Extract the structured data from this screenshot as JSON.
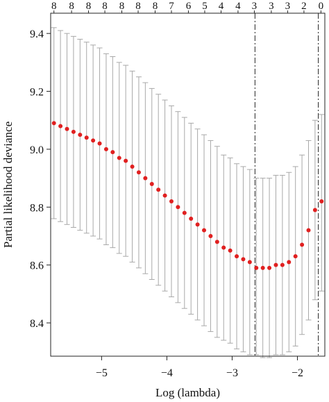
{
  "chart_data": {
    "type": "scatter",
    "title": "",
    "xlabel": "Log (lambda)",
    "ylabel": "Partial likelihood deviance",
    "xlim": [
      -5.78,
      -1.58
    ],
    "ylim": [
      8.285,
      9.47
    ],
    "x_ticks": [
      -5,
      -4,
      -3,
      -2
    ],
    "x_tick_labels": [
      "−5",
      "−4",
      "−3",
      "−2"
    ],
    "y_ticks": [
      8.4,
      8.6,
      8.8,
      9.0,
      9.2,
      9.4
    ],
    "y_tick_labels": [
      "8.4",
      "8.6",
      "8.8",
      "9.0",
      "9.2",
      "9.4"
    ],
    "top_axis": {
      "x": [
        -5.73,
        -5.46,
        -5.2,
        -4.95,
        -4.69,
        -4.44,
        -4.18,
        -3.93,
        -3.67,
        -3.42,
        -3.17,
        -2.91,
        -2.66,
        -2.4,
        -2.15,
        -1.9,
        -1.64
      ],
      "labels": [
        "8",
        "8",
        "8",
        "8",
        "8",
        "8",
        "8",
        "7",
        "6",
        "5",
        "4",
        "4",
        "3",
        "3",
        "3",
        "2",
        "0"
      ]
    },
    "vlines": [
      -2.65,
      -1.68
    ],
    "grid": false,
    "legend": "none",
    "point_color": "#e02020",
    "errorbar_color": "#a8a8a8",
    "vline_color": "#222222",
    "series": [
      {
        "x": [
          -5.73,
          -5.63,
          -5.53,
          -5.43,
          -5.33,
          -5.23,
          -5.13,
          -5.03,
          -4.93,
          -4.83,
          -4.73,
          -4.63,
          -4.53,
          -4.43,
          -4.33,
          -4.23,
          -4.13,
          -4.03,
          -3.93,
          -3.83,
          -3.73,
          -3.63,
          -3.53,
          -3.43,
          -3.33,
          -3.23,
          -3.13,
          -3.03,
          -2.93,
          -2.83,
          -2.73,
          -2.63,
          -2.53,
          -2.43,
          -2.33,
          -2.23,
          -2.13,
          -2.03,
          -1.93,
          -1.83,
          -1.73,
          -1.63
        ],
        "mean": [
          9.09,
          9.08,
          9.07,
          9.06,
          9.05,
          9.04,
          9.03,
          9.02,
          9.0,
          8.99,
          8.97,
          8.96,
          8.94,
          8.92,
          8.9,
          8.88,
          8.86,
          8.84,
          8.82,
          8.8,
          8.78,
          8.76,
          8.74,
          8.72,
          8.7,
          8.68,
          8.66,
          8.65,
          8.63,
          8.62,
          8.61,
          8.59,
          8.59,
          8.59,
          8.6,
          8.6,
          8.61,
          8.63,
          8.67,
          8.72,
          8.79,
          8.82
        ],
        "lower": [
          8.76,
          8.75,
          8.74,
          8.73,
          8.72,
          8.71,
          8.7,
          8.69,
          8.67,
          8.66,
          8.64,
          8.63,
          8.61,
          8.59,
          8.57,
          8.55,
          8.53,
          8.51,
          8.49,
          8.47,
          8.45,
          8.43,
          8.41,
          8.39,
          8.37,
          8.35,
          8.34,
          8.33,
          8.31,
          8.3,
          8.29,
          8.29,
          8.28,
          8.28,
          8.29,
          8.29,
          8.3,
          8.32,
          8.36,
          8.41,
          8.48,
          8.51
        ],
        "upper": [
          9.42,
          9.41,
          9.4,
          9.39,
          9.38,
          9.37,
          9.36,
          9.35,
          9.33,
          9.32,
          9.3,
          9.29,
          9.27,
          9.25,
          9.23,
          9.21,
          9.19,
          9.17,
          9.15,
          9.13,
          9.11,
          9.09,
          9.07,
          9.05,
          9.03,
          9.01,
          8.98,
          8.97,
          8.95,
          8.94,
          8.93,
          8.9,
          8.9,
          8.9,
          8.91,
          8.91,
          8.92,
          8.94,
          8.98,
          9.03,
          9.1,
          9.12
        ]
      }
    ]
  }
}
